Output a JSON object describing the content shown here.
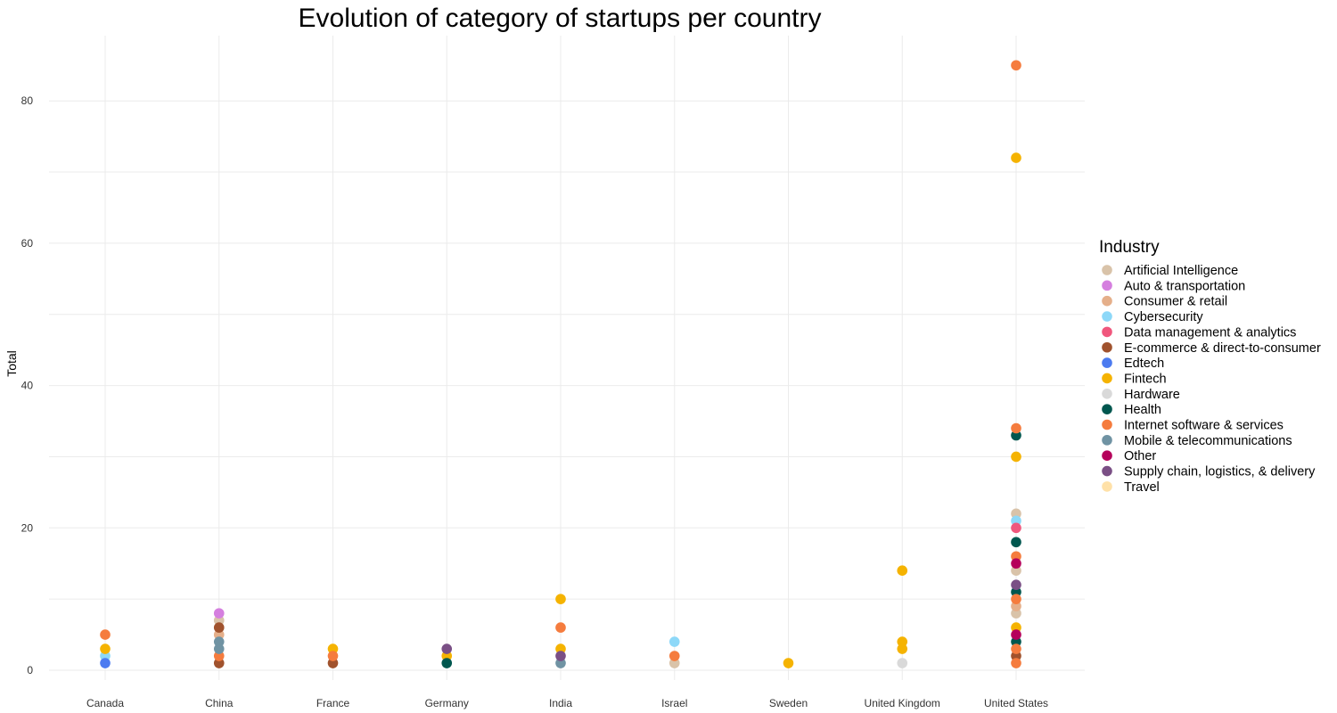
{
  "chart_data": {
    "type": "scatter",
    "title": "Evolution of category of startups per country",
    "xlabel": "",
    "ylabel": "Total",
    "ylim": [
      -1.5,
      89
    ],
    "yticks": [
      0,
      20,
      40,
      60,
      80
    ],
    "grid": true,
    "legend": {
      "title": "Industry",
      "position": "right"
    },
    "categories": [
      "Canada",
      "China",
      "France",
      "Germany",
      "India",
      "Israel",
      "Sweden",
      "United Kingdom",
      "United States"
    ],
    "series": [
      {
        "name": "Artificial Intelligence",
        "color": "#D9C3A9",
        "points": [
          [
            "China",
            7
          ],
          [
            "Israel",
            1
          ],
          [
            "United States",
            22
          ],
          [
            "United States",
            14
          ],
          [
            "United States",
            8
          ]
        ]
      },
      {
        "name": "Auto & transportation",
        "color": "#D57FDF",
        "points": [
          [
            "China",
            8
          ]
        ]
      },
      {
        "name": "Consumer & retail",
        "color": "#E5AF8A",
        "points": [
          [
            "China",
            5
          ],
          [
            "United States",
            9
          ]
        ]
      },
      {
        "name": "Cybersecurity",
        "color": "#8DD8F8",
        "points": [
          [
            "Canada",
            2
          ],
          [
            "Israel",
            4
          ],
          [
            "United States",
            21
          ]
        ]
      },
      {
        "name": "Data management & analytics",
        "color": "#F0577D",
        "points": [
          [
            "United States",
            20
          ]
        ]
      },
      {
        "name": "E-commerce & direct-to-consumer",
        "color": "#A0522D",
        "points": [
          [
            "China",
            6
          ],
          [
            "China",
            1
          ],
          [
            "France",
            1
          ],
          [
            "United States",
            2
          ]
        ]
      },
      {
        "name": "Edtech",
        "color": "#4C7BF0",
        "points": [
          [
            "Canada",
            1
          ]
        ]
      },
      {
        "name": "Fintech",
        "color": "#F5B301",
        "points": [
          [
            "Canada",
            3
          ],
          [
            "France",
            3
          ],
          [
            "Germany",
            2
          ],
          [
            "India",
            10
          ],
          [
            "India",
            3
          ],
          [
            "Sweden",
            1
          ],
          [
            "United Kingdom",
            14
          ],
          [
            "United Kingdom",
            4
          ],
          [
            "United Kingdom",
            3
          ],
          [
            "United States",
            72
          ],
          [
            "United States",
            30
          ],
          [
            "United States",
            6
          ]
        ]
      },
      {
        "name": "Hardware",
        "color": "#D9D9D9",
        "points": [
          [
            "United Kingdom",
            1
          ]
        ]
      },
      {
        "name": "Health",
        "color": "#00574F",
        "points": [
          [
            "Germany",
            1
          ],
          [
            "United States",
            33
          ],
          [
            "United States",
            18
          ],
          [
            "United States",
            11
          ],
          [
            "United States",
            4
          ]
        ]
      },
      {
        "name": "Internet software & services",
        "color": "#F57C3E",
        "points": [
          [
            "Canada",
            5
          ],
          [
            "China",
            2
          ],
          [
            "France",
            2
          ],
          [
            "India",
            6
          ],
          [
            "Israel",
            2
          ],
          [
            "United States",
            85
          ],
          [
            "United States",
            34
          ],
          [
            "United States",
            16
          ],
          [
            "United States",
            10
          ],
          [
            "United States",
            3
          ],
          [
            "United States",
            1
          ]
        ]
      },
      {
        "name": "Mobile & telecommunications",
        "color": "#7093A3",
        "points": [
          [
            "China",
            4
          ],
          [
            "China",
            3
          ],
          [
            "India",
            1
          ]
        ]
      },
      {
        "name": "Other",
        "color": "#B5005B",
        "points": [
          [
            "United States",
            15
          ],
          [
            "United States",
            5
          ]
        ]
      },
      {
        "name": "Supply chain, logistics, & delivery",
        "color": "#7A4F85",
        "points": [
          [
            "Germany",
            3
          ],
          [
            "India",
            2
          ],
          [
            "United States",
            12
          ]
        ]
      },
      {
        "name": "Travel",
        "color": "#FFE1A8",
        "points": []
      }
    ]
  }
}
